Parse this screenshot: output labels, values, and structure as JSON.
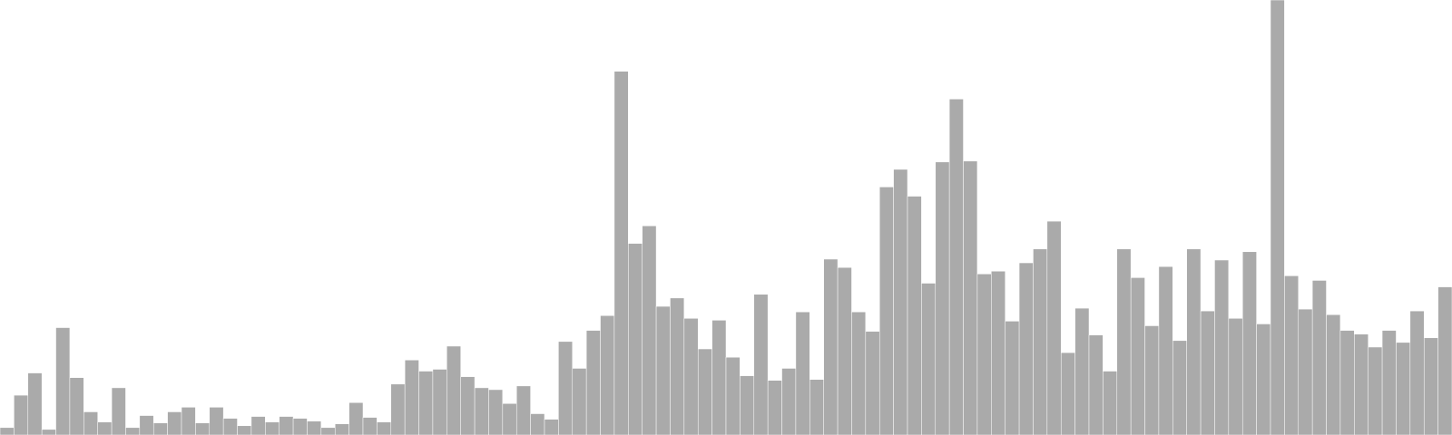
{
  "chart_data": {
    "type": "bar",
    "bar_color": "#aaaaaa",
    "background": "#ffffff",
    "grid": false,
    "legend": "none",
    "ylim": [
      0,
      470
    ],
    "values": [
      8,
      43,
      67,
      6,
      116,
      62,
      25,
      14,
      51,
      8,
      21,
      13,
      25,
      30,
      13,
      30,
      18,
      10,
      20,
      14,
      20,
      18,
      15,
      8,
      12,
      35,
      19,
      14,
      55,
      81,
      69,
      71,
      96,
      63,
      51,
      49,
      34,
      53,
      23,
      17,
      101,
      72,
      113,
      129,
      393,
      207,
      226,
      139,
      148,
      126,
      93,
      124,
      84,
      64,
      152,
      59,
      72,
      133,
      60,
      190,
      181,
      133,
      112,
      268,
      287,
      258,
      164,
      295,
      363,
      296,
      174,
      177,
      123,
      186,
      201,
      231,
      89,
      137,
      108,
      69,
      201,
      170,
      118,
      182,
      102,
      201,
      134,
      189,
      126,
      198,
      120,
      470,
      172,
      136,
      167,
      130,
      113,
      109,
      95,
      113,
      100,
      134,
      105,
      160
    ]
  }
}
